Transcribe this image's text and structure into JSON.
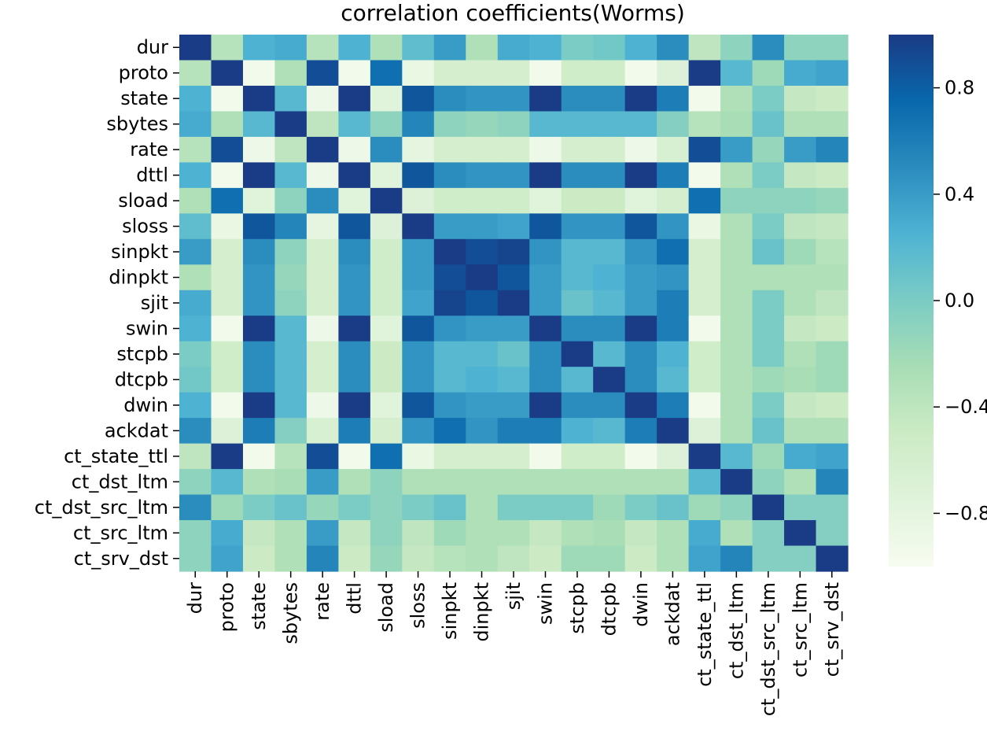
{
  "chart_data": {
    "type": "heatmap",
    "title": "correlation coefficients(Worms)",
    "xlabel": "",
    "ylabel": "",
    "labels": [
      "dur",
      "proto",
      "state",
      "sbytes",
      "rate",
      "dttl",
      "sload",
      "sloss",
      "sinpkt",
      "dinpkt",
      "sjit",
      "swin",
      "stcpb",
      "dtcpb",
      "dwin",
      "ackdat",
      "ct_state_ttl",
      "ct_dst_ltm",
      "ct_dst_src_ltm",
      "ct_src_ltm",
      "ct_srv_dst"
    ],
    "values": [
      [
        1.0,
        -0.35,
        0.25,
        0.3,
        -0.35,
        0.25,
        -0.3,
        0.15,
        0.4,
        -0.3,
        0.3,
        0.25,
        0.0,
        0.05,
        0.25,
        0.5,
        -0.4,
        -0.1,
        0.5,
        -0.1,
        -0.1
      ],
      [
        -0.35,
        1.0,
        -0.95,
        -0.3,
        0.9,
        -0.95,
        0.7,
        -0.85,
        -0.6,
        -0.6,
        -0.6,
        -0.95,
        -0.55,
        -0.55,
        -0.95,
        -0.7,
        1.0,
        0.2,
        -0.2,
        0.3,
        0.35
      ],
      [
        0.25,
        -0.95,
        1.0,
        0.2,
        -0.9,
        1.0,
        -0.75,
        0.85,
        0.5,
        0.45,
        0.45,
        1.0,
        0.5,
        0.5,
        1.0,
        0.6,
        -0.95,
        -0.3,
        0.0,
        -0.45,
        -0.5
      ],
      [
        0.3,
        -0.3,
        0.2,
        1.0,
        -0.4,
        0.2,
        -0.1,
        0.55,
        -0.1,
        -0.15,
        -0.1,
        0.2,
        0.2,
        0.2,
        0.2,
        -0.05,
        -0.35,
        -0.25,
        0.1,
        -0.3,
        -0.3
      ],
      [
        -0.35,
        0.9,
        -0.9,
        -0.4,
        1.0,
        -0.9,
        0.5,
        -0.8,
        -0.6,
        -0.6,
        -0.6,
        -0.9,
        -0.6,
        -0.6,
        -0.9,
        -0.65,
        0.9,
        0.4,
        -0.15,
        0.4,
        0.55
      ],
      [
        0.25,
        -0.95,
        1.0,
        0.2,
        -0.9,
        1.0,
        -0.75,
        0.85,
        0.5,
        0.45,
        0.45,
        1.0,
        0.5,
        0.5,
        1.0,
        0.6,
        -0.95,
        -0.3,
        0.0,
        -0.45,
        -0.5
      ],
      [
        -0.3,
        0.7,
        -0.75,
        -0.1,
        0.5,
        -0.75,
        1.0,
        -0.7,
        -0.55,
        -0.55,
        -0.55,
        -0.75,
        -0.5,
        -0.5,
        -0.75,
        -0.6,
        0.7,
        -0.1,
        -0.1,
        -0.1,
        -0.15
      ],
      [
        0.15,
        -0.85,
        0.85,
        0.55,
        -0.8,
        0.85,
        -0.7,
        1.0,
        0.4,
        0.4,
        0.35,
        0.85,
        0.45,
        0.45,
        0.85,
        0.45,
        -0.85,
        -0.3,
        0.0,
        -0.4,
        -0.45
      ],
      [
        0.4,
        -0.6,
        0.5,
        -0.1,
        -0.6,
        0.5,
        -0.55,
        0.4,
        1.0,
        0.9,
        0.95,
        0.45,
        0.2,
        0.2,
        0.45,
        0.7,
        -0.6,
        -0.3,
        0.1,
        -0.2,
        -0.35
      ],
      [
        -0.3,
        -0.6,
        0.45,
        -0.15,
        -0.6,
        0.45,
        -0.55,
        0.4,
        0.9,
        1.0,
        0.85,
        0.4,
        0.2,
        0.25,
        0.4,
        0.45,
        -0.6,
        -0.3,
        -0.3,
        -0.3,
        -0.3
      ],
      [
        0.3,
        -0.6,
        0.45,
        -0.1,
        -0.6,
        0.45,
        -0.55,
        0.35,
        0.95,
        0.85,
        1.0,
        0.4,
        0.1,
        0.2,
        0.4,
        0.6,
        -0.6,
        -0.3,
        0.0,
        -0.3,
        -0.4
      ],
      [
        0.25,
        -0.95,
        1.0,
        0.2,
        -0.9,
        1.0,
        -0.75,
        0.85,
        0.45,
        0.4,
        0.4,
        1.0,
        0.5,
        0.5,
        1.0,
        0.6,
        -0.95,
        -0.3,
        0.0,
        -0.45,
        -0.5
      ],
      [
        0.0,
        -0.55,
        0.5,
        0.2,
        -0.6,
        0.5,
        -0.5,
        0.45,
        0.2,
        0.2,
        0.1,
        0.5,
        1.0,
        0.2,
        0.5,
        0.25,
        -0.55,
        -0.3,
        0.0,
        -0.3,
        -0.2
      ],
      [
        0.05,
        -0.55,
        0.5,
        0.2,
        -0.6,
        0.5,
        -0.5,
        0.45,
        0.2,
        0.25,
        0.2,
        0.5,
        0.2,
        1.0,
        0.5,
        0.2,
        -0.55,
        -0.3,
        -0.2,
        -0.25,
        -0.2
      ],
      [
        0.25,
        -0.95,
        1.0,
        0.2,
        -0.9,
        1.0,
        -0.75,
        0.85,
        0.45,
        0.4,
        0.4,
        1.0,
        0.5,
        0.5,
        1.0,
        0.6,
        -0.95,
        -0.3,
        0.0,
        -0.45,
        -0.5
      ],
      [
        0.5,
        -0.7,
        0.6,
        -0.05,
        -0.65,
        0.6,
        -0.6,
        0.45,
        0.7,
        0.45,
        0.6,
        0.6,
        0.25,
        0.2,
        0.6,
        1.0,
        -0.7,
        -0.3,
        0.1,
        -0.3,
        -0.3
      ],
      [
        -0.4,
        1.0,
        -0.95,
        -0.35,
        0.9,
        -0.95,
        0.7,
        -0.85,
        -0.6,
        -0.6,
        -0.6,
        -0.95,
        -0.55,
        -0.55,
        -0.95,
        -0.7,
        1.0,
        0.2,
        -0.2,
        0.3,
        0.35
      ],
      [
        -0.1,
        0.2,
        -0.3,
        -0.25,
        0.4,
        -0.3,
        -0.1,
        -0.3,
        -0.3,
        -0.3,
        -0.3,
        -0.3,
        -0.3,
        -0.3,
        -0.3,
        -0.3,
        0.2,
        1.0,
        -0.1,
        -0.3,
        0.55
      ],
      [
        0.5,
        -0.2,
        0.0,
        0.1,
        -0.15,
        0.0,
        -0.1,
        0.0,
        0.1,
        -0.3,
        0.0,
        0.0,
        0.0,
        -0.2,
        0.0,
        0.1,
        -0.2,
        -0.1,
        1.0,
        -0.05,
        -0.05
      ],
      [
        -0.1,
        0.3,
        -0.45,
        -0.3,
        0.4,
        -0.45,
        -0.1,
        -0.4,
        -0.2,
        -0.3,
        -0.3,
        -0.45,
        -0.3,
        -0.25,
        -0.45,
        -0.3,
        0.3,
        -0.3,
        -0.05,
        1.0,
        -0.05
      ],
      [
        -0.1,
        0.35,
        -0.5,
        -0.3,
        0.55,
        -0.5,
        -0.15,
        -0.45,
        -0.35,
        -0.3,
        -0.4,
        -0.5,
        -0.2,
        -0.2,
        -0.5,
        -0.3,
        0.35,
        0.55,
        -0.05,
        -0.05,
        1.0
      ]
    ],
    "vmin": -1.0,
    "vmax": 1.0,
    "colormap": "YlGnBu",
    "colorbar_ticks": [
      0.8,
      0.4,
      0.0,
      -0.4,
      -0.8
    ],
    "colorbar_tick_labels": [
      "0.8",
      "0.4",
      "0.0",
      "−0.4",
      "−0.8"
    ],
    "grid": false
  }
}
